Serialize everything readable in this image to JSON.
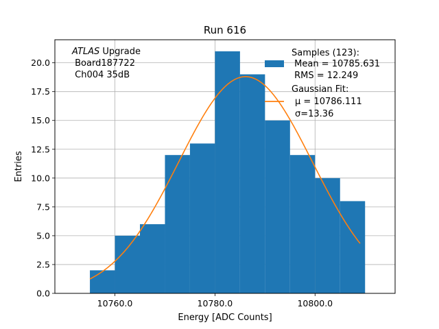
{
  "chart_data": {
    "type": "bar",
    "title": "Run 616",
    "xlabel": "Energy [ADC Counts]",
    "ylabel": "Entries",
    "xlim": [
      10748,
      10816
    ],
    "ylim": [
      0,
      22
    ],
    "grid": true,
    "xticks": [
      10760,
      10780,
      10800
    ],
    "xtick_labels": [
      "10760.0",
      "10780.0",
      "10800.0"
    ],
    "yticks": [
      0,
      2.5,
      5,
      7.5,
      10,
      12.5,
      15,
      17.5,
      20
    ],
    "ytick_labels": [
      "0.0",
      "2.5",
      "5.0",
      "7.5",
      "10.0",
      "12.5",
      "15.0",
      "17.5",
      "20.0"
    ],
    "histogram": {
      "color": "#1f77b4",
      "bin_edges": [
        10755,
        10760,
        10765,
        10770,
        10775,
        10780,
        10785,
        10790,
        10795,
        10800,
        10805,
        10810
      ],
      "counts": [
        2,
        5,
        6,
        12,
        13,
        21,
        19,
        15,
        12,
        10,
        8
      ]
    },
    "fit": {
      "color": "#ff7f0e",
      "amplitude": 18.8,
      "mu": 10786.111,
      "sigma": 13.36,
      "x_range": [
        10755,
        10809
      ]
    },
    "annotation": {
      "italic": "ATLAS",
      "rest": " Upgrade",
      "line2": " Board187722",
      "line3": " Ch004 35dB"
    },
    "legend": {
      "position": "top-right",
      "samples_title": "Samples (123):",
      "samples_mean": " Mean = 10785.631",
      "samples_rms": " RMS = 12.249",
      "fit_title": "Gaussian Fit:",
      "fit_mu": "μ = 10786.111",
      "fit_sigma": "σ=13.36"
    }
  }
}
